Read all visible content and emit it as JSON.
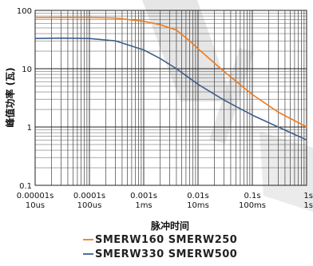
{
  "chart_data": {
    "type": "line",
    "xscale": "log",
    "yscale": "log",
    "xlim": [
      1e-05,
      1
    ],
    "ylim": [
      0.1,
      100
    ],
    "xlabel": "脉冲时间",
    "ylabel": "峰值功率 (瓦)",
    "grid": true,
    "x_ticks": [
      {
        "value": 1e-05,
        "line1": "0.00001s",
        "line2": "10us"
      },
      {
        "value": 0.0001,
        "line1": "0.0001s",
        "line2": "100us"
      },
      {
        "value": 0.001,
        "line1": "0.001s",
        "line2": "1ms"
      },
      {
        "value": 0.01,
        "line1": "0.01s",
        "line2": "10ms"
      },
      {
        "value": 0.1,
        "line1": "0.1s",
        "line2": "100ms"
      },
      {
        "value": 1,
        "line1": "1s",
        "line2": "1s"
      }
    ],
    "y_ticks": [
      {
        "value": 0.1,
        "label": "0.1"
      },
      {
        "value": 1,
        "label": "1"
      },
      {
        "value": 10,
        "label": "10"
      },
      {
        "value": 100,
        "label": "100"
      }
    ],
    "series": [
      {
        "name": "SMERW160 SMERW250",
        "color": "#ee7a1d",
        "x": [
          1e-05,
          3e-05,
          0.0001,
          0.0003,
          0.001,
          0.002,
          0.004,
          0.007,
          0.01,
          0.03,
          0.1,
          0.3,
          1
        ],
        "y": [
          75,
          75.5,
          75.5,
          74,
          65,
          57,
          46,
          30,
          22,
          9,
          3.6,
          1.8,
          1.0
        ]
      },
      {
        "name": "SMERW330 SMERW500",
        "color": "#3d5f8a",
        "x": [
          1e-05,
          3e-05,
          0.0001,
          0.0003,
          0.001,
          0.002,
          0.004,
          0.01,
          0.03,
          0.1,
          0.3,
          1
        ],
        "y": [
          33,
          33.5,
          33,
          30,
          21,
          15,
          10,
          5.4,
          2.9,
          1.6,
          1.0,
          0.6
        ]
      }
    ],
    "legend_position": "bottom"
  }
}
